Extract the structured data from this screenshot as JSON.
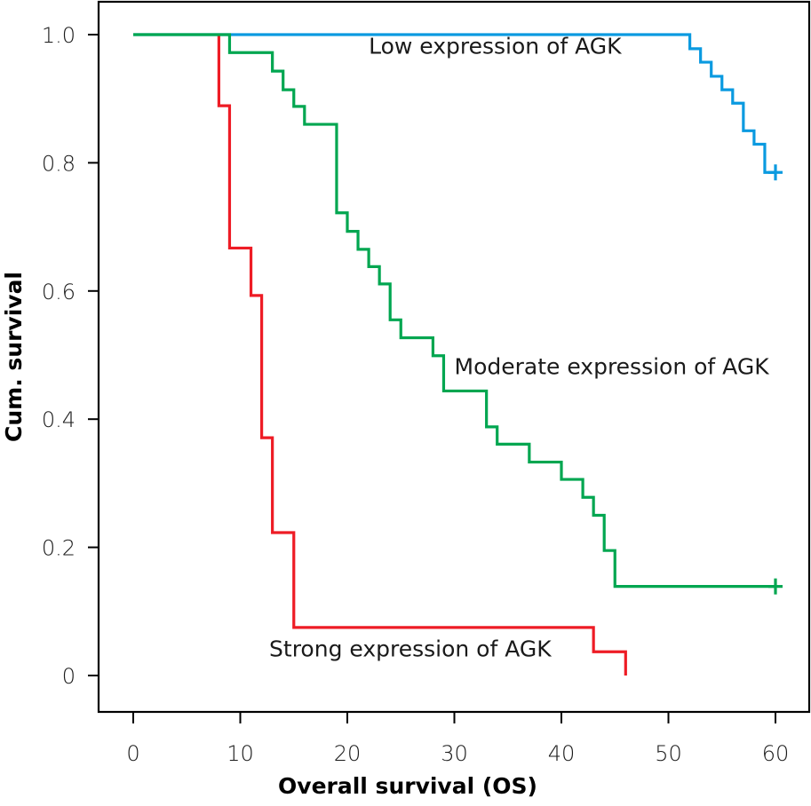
{
  "chart_data": {
    "type": "line",
    "subtype": "kaplan-meier-step",
    "title": "",
    "xlabel": "Overall survival (OS)",
    "ylabel": "Cum. survival",
    "xlim": [
      0,
      60
    ],
    "ylim": [
      0,
      1.0
    ],
    "xticks": [
      0,
      10,
      20,
      30,
      40,
      50,
      60
    ],
    "xtick_labels": [
      "0",
      "10",
      "20",
      "30",
      "40",
      "50",
      "60"
    ],
    "yticks": [
      0,
      0.2,
      0.4,
      0.6,
      0.8,
      1.0
    ],
    "ytick_labels": [
      "0",
      "0.2",
      "0.4",
      "0.6",
      "0.8",
      "1.0"
    ],
    "grid": false,
    "legend": "none (inline annotations)",
    "series": [
      {
        "name": "Low expression of AGK",
        "color": "#0a9ae0",
        "label": "Low expression of AGK",
        "label_anchor": [
          22,
          0.97
        ],
        "steps": [
          [
            0,
            1.0
          ],
          [
            52,
            0.978
          ],
          [
            53,
            0.957
          ],
          [
            54,
            0.935
          ],
          [
            55,
            0.914
          ],
          [
            56,
            0.893
          ],
          [
            57,
            0.85
          ],
          [
            58,
            0.829
          ],
          [
            59,
            0.785
          ]
        ],
        "end_time": 60,
        "censored": [
          [
            60,
            0.785
          ]
        ]
      },
      {
        "name": "Moderate expression of AGK",
        "color": "#00a650",
        "label": "Moderate expression of AGK",
        "label_anchor": [
          30,
          0.47
        ],
        "steps": [
          [
            0,
            1.0
          ],
          [
            9,
            0.972
          ],
          [
            13,
            0.943
          ],
          [
            14,
            0.914
          ],
          [
            15,
            0.888
          ],
          [
            16,
            0.86
          ],
          [
            19,
            0.722
          ],
          [
            20,
            0.693
          ],
          [
            21,
            0.665
          ],
          [
            22,
            0.638
          ],
          [
            23,
            0.611
          ],
          [
            24,
            0.555
          ],
          [
            25,
            0.527
          ],
          [
            28,
            0.499
          ],
          [
            29,
            0.444
          ],
          [
            33,
            0.388
          ],
          [
            34,
            0.361
          ],
          [
            37,
            0.333
          ],
          [
            40,
            0.306
          ],
          [
            42,
            0.278
          ],
          [
            43,
            0.25
          ],
          [
            44,
            0.195
          ],
          [
            45,
            0.139
          ]
        ],
        "end_time": 60,
        "censored": [
          [
            60,
            0.139
          ]
        ]
      },
      {
        "name": "Strong expression of AGK",
        "color": "#ee1c25",
        "label": "Strong expression of AGK",
        "label_anchor": [
          12.7,
          0.03
        ],
        "steps": [
          [
            8,
            1.0
          ],
          [
            8,
            0.889
          ],
          [
            9,
            0.667
          ],
          [
            11,
            0.593
          ],
          [
            12,
            0.371
          ],
          [
            13,
            0.223
          ],
          [
            15,
            0.075
          ],
          [
            43,
            0.037
          ],
          [
            46,
            0.0
          ]
        ],
        "end_time": 46,
        "censored": []
      }
    ]
  }
}
